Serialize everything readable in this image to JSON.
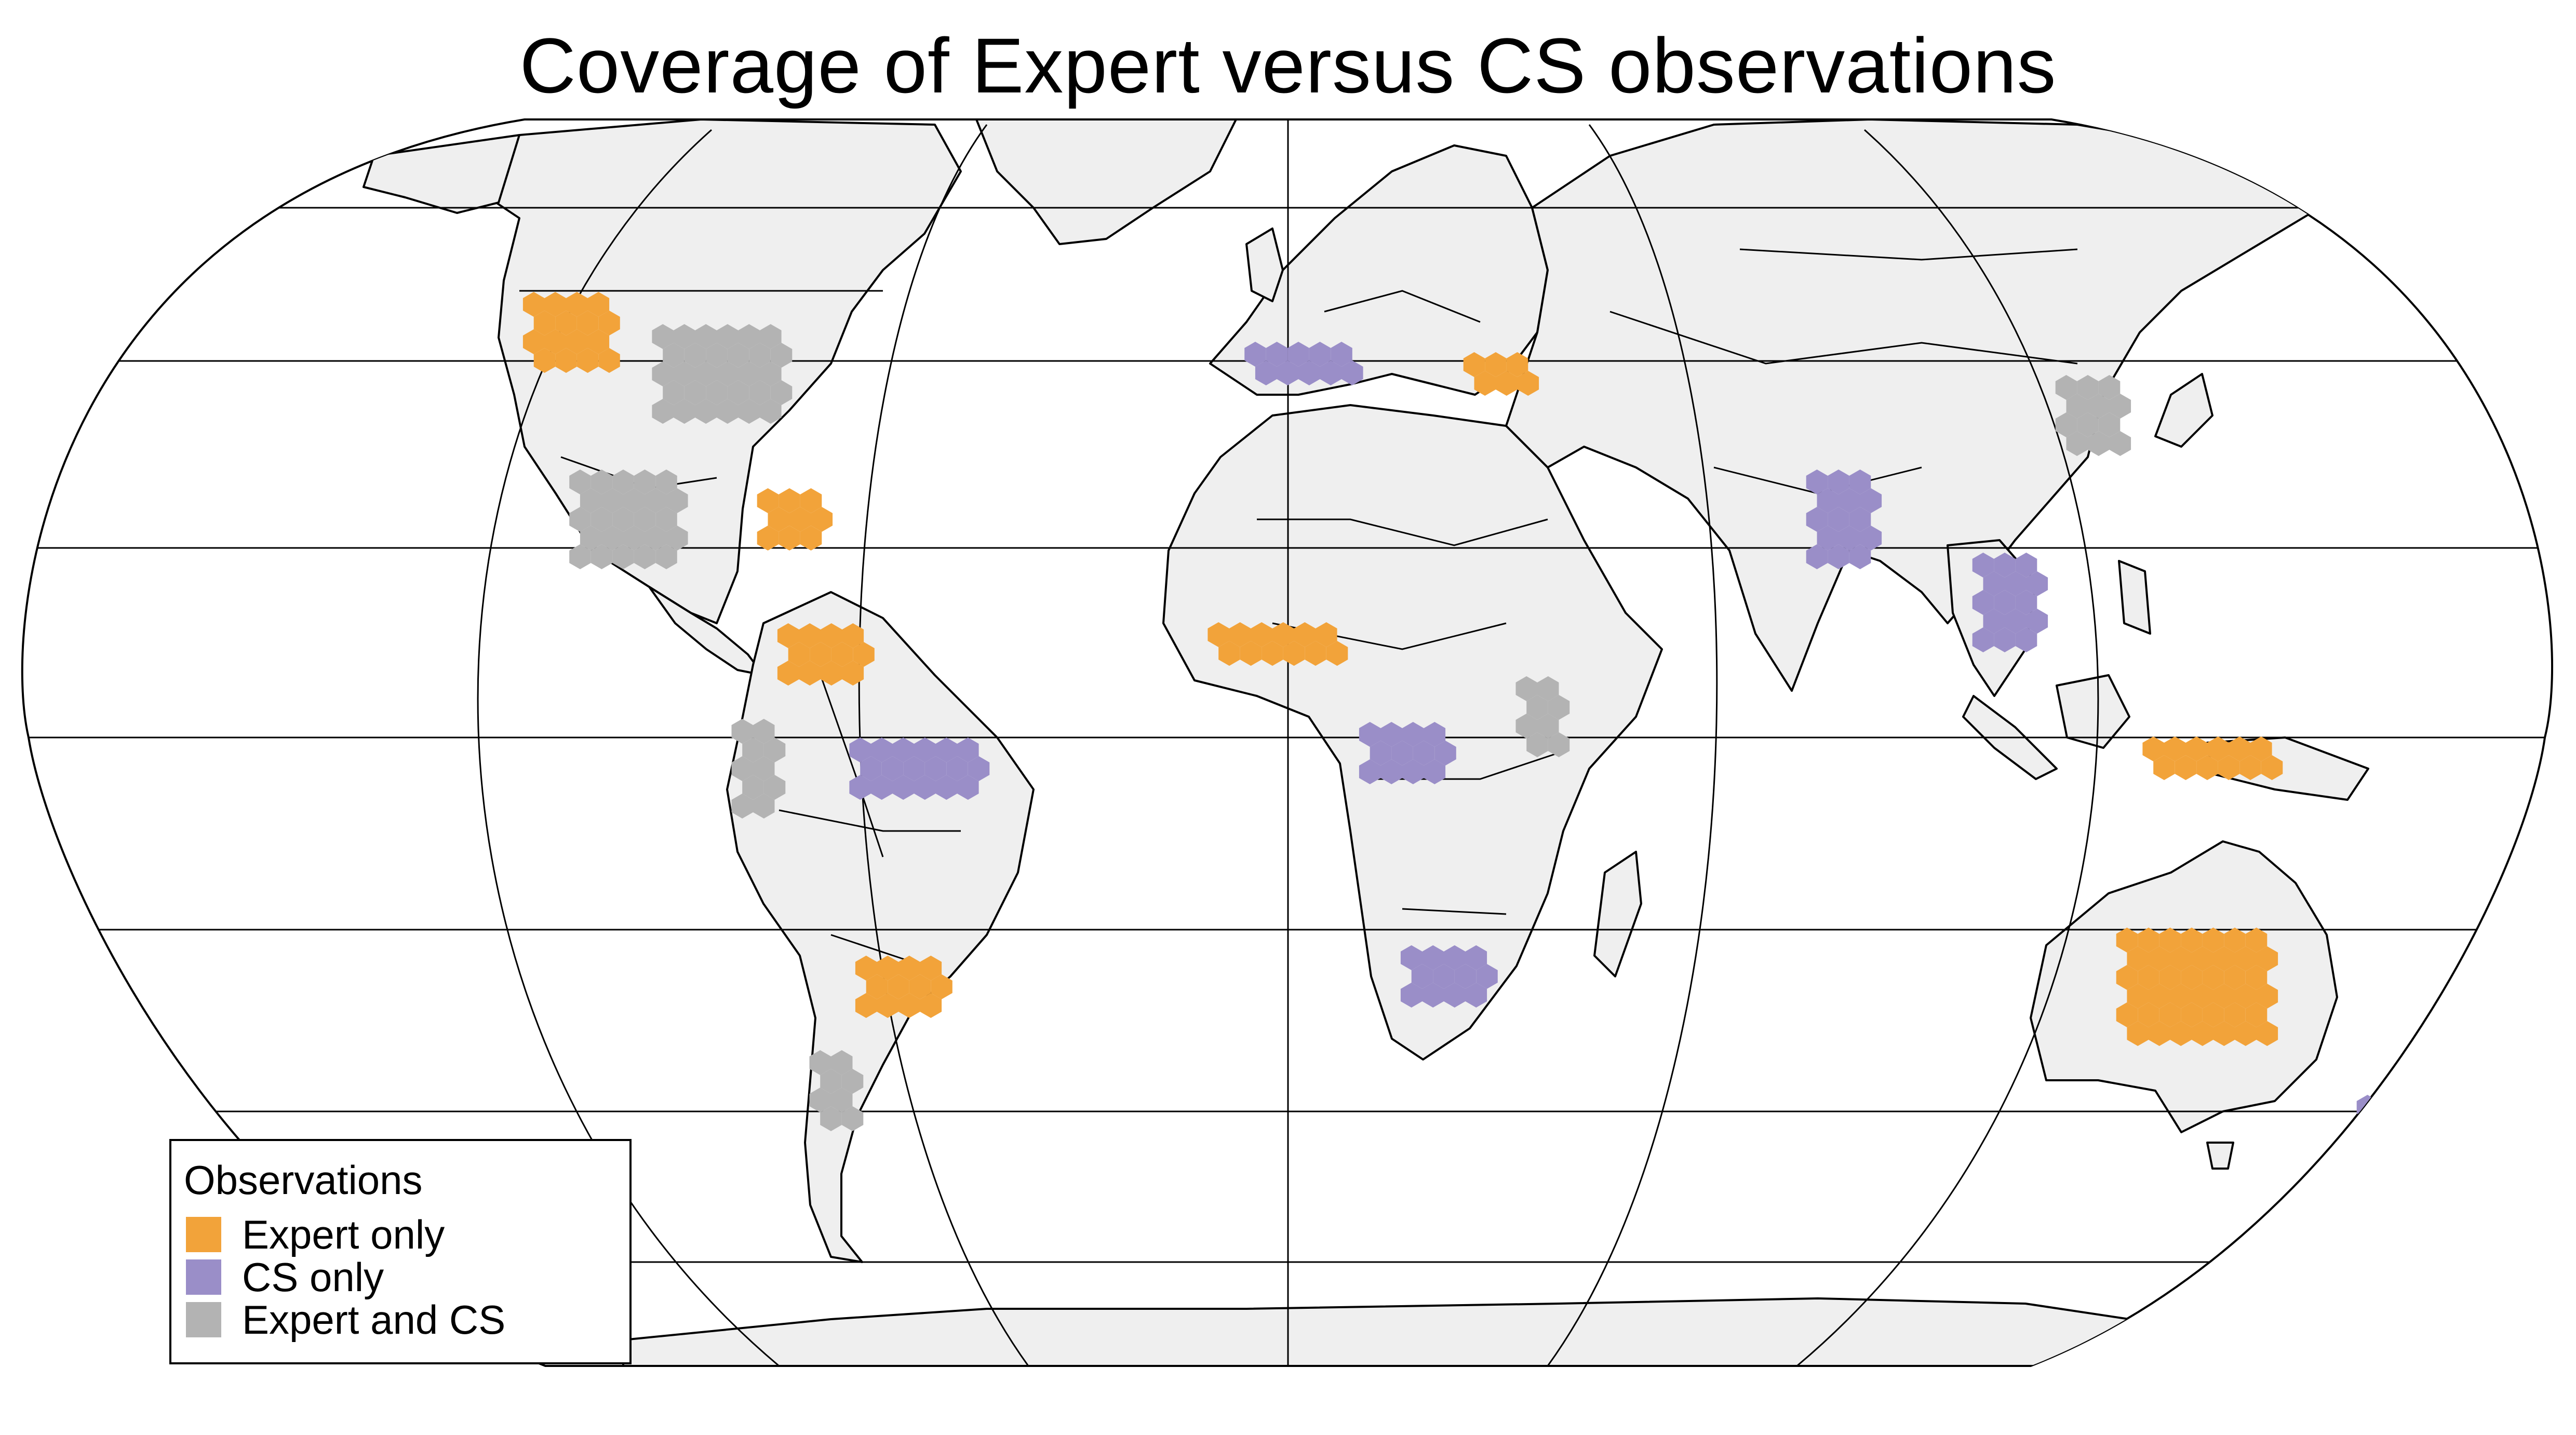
{
  "map": {
    "title": "Coverage of Expert versus CS observations",
    "projection": "robinson",
    "land_color": "#efefef",
    "border_color": "#000000",
    "graticule_color": "#000000"
  },
  "legend": {
    "title": "Observations",
    "items": [
      {
        "label": "Expert only",
        "color": "#f2a33a"
      },
      {
        "label": "CS only",
        "color": "#9a8ec8"
      },
      {
        "label": "Expert and CS",
        "color": "#b3b3b3"
      }
    ]
  },
  "coverage_regions": [
    {
      "region": "western-usa",
      "category": "Expert only"
    },
    {
      "region": "eastern-usa",
      "category": "Expert and CS"
    },
    {
      "region": "mexico-central-america",
      "category": "Expert and CS"
    },
    {
      "region": "caribbean",
      "category": "Expert only"
    },
    {
      "region": "northern-south-america",
      "category": "Expert only"
    },
    {
      "region": "amazon-brazil",
      "category": "CS only"
    },
    {
      "region": "andes",
      "category": "Expert and CS"
    },
    {
      "region": "southern-brazil-paraguay",
      "category": "Expert only"
    },
    {
      "region": "argentina-chile",
      "category": "Expert and CS"
    },
    {
      "region": "west-africa",
      "category": "Expert only"
    },
    {
      "region": "central-africa",
      "category": "CS only"
    },
    {
      "region": "east-africa",
      "category": "Expert and CS"
    },
    {
      "region": "southern-africa",
      "category": "CS only"
    },
    {
      "region": "iberia-mediterranean",
      "category": "CS only"
    },
    {
      "region": "turkey",
      "category": "Expert only"
    },
    {
      "region": "india",
      "category": "CS only"
    },
    {
      "region": "southeast-asia",
      "category": "CS only"
    },
    {
      "region": "east-asia",
      "category": "Expert and CS"
    },
    {
      "region": "indonesia-new-guinea",
      "category": "Expert only"
    },
    {
      "region": "australia",
      "category": "Expert only"
    },
    {
      "region": "new-zealand",
      "category": "CS only"
    }
  ]
}
